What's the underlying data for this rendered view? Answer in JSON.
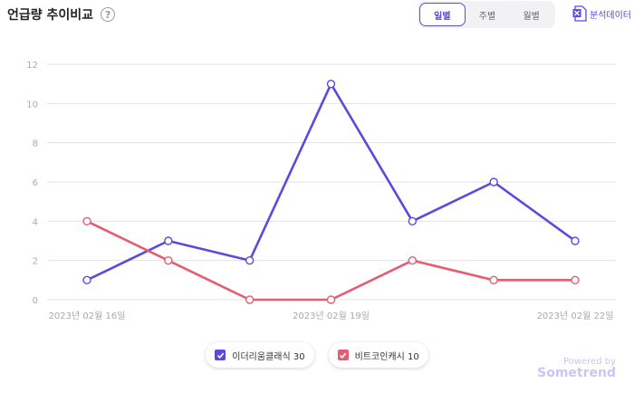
{
  "header": {
    "title": "언급량 추이비교",
    "help_icon": "question-circle-icon"
  },
  "period_tabs": [
    {
      "label": "일별",
      "active": true
    },
    {
      "label": "주별",
      "active": false
    },
    {
      "label": "월별",
      "active": false
    }
  ],
  "export": {
    "label": "분석데이터",
    "icon": "excel-icon"
  },
  "colors": {
    "accent": "#5a4ae0",
    "series1": "#5a4ae0",
    "series2": "#e65c73"
  },
  "legend": [
    {
      "label": "이더리움클래식 30",
      "color": "#5a4ae0"
    },
    {
      "label": "비트코인캐시 10",
      "color": "#e65c73"
    }
  ],
  "powered": {
    "by": "Powered by",
    "brand": "Sometrend"
  },
  "chart_data": {
    "type": "line",
    "x": [
      "2023년 02월 16일",
      "2023년 02월 17일",
      "2023년 02월 18일",
      "2023년 02월 19일",
      "2023년 02월 20일",
      "2023년 02월 21일",
      "2023년 02월 22일"
    ],
    "x_tick_labels": [
      "2023년 02월 16일",
      "2023년 02월 19일",
      "2023년 02월 22일"
    ],
    "series": [
      {
        "name": "이더리움클래식",
        "color": "#5a4ae0",
        "values": [
          1,
          3,
          2,
          11,
          4,
          6,
          3
        ]
      },
      {
        "name": "비트코인캐시",
        "color": "#e65c73",
        "values": [
          4,
          2,
          0,
          0,
          2,
          1,
          1
        ]
      }
    ],
    "y_ticks": [
      0,
      2,
      4,
      6,
      8,
      10,
      12
    ],
    "ylim": [
      0,
      12
    ],
    "grid": true,
    "legend_position": "bottom-center"
  }
}
